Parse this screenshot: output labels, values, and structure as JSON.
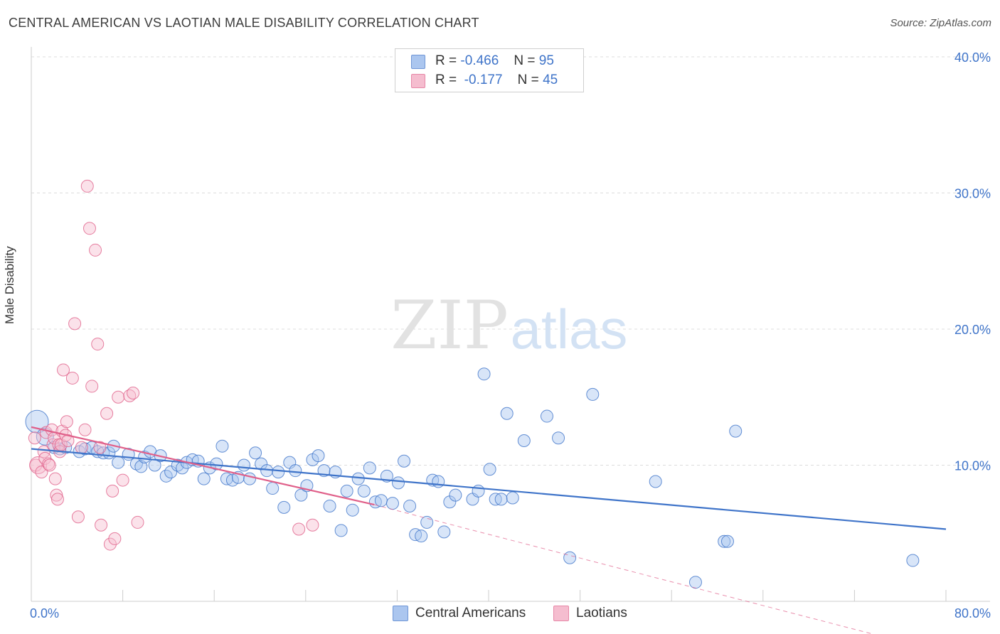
{
  "title": "CENTRAL AMERICAN VS LAOTIAN MALE DISABILITY CORRELATION CHART",
  "source": "Source: ZipAtlas.com",
  "watermark": {
    "zip": "ZIP",
    "atlas": "atlas"
  },
  "legend": {
    "series": [
      {
        "r_label": "R =",
        "r_value": "-0.466",
        "n_label": "N =",
        "n_value": "95",
        "color": "#8fb4ea",
        "edge": "#3f74c9"
      },
      {
        "r_label": "R =",
        "r_value": "-0.177",
        "n_label": "N =",
        "n_value": "45",
        "color": "#f2a7bf",
        "edge": "#e0608a"
      }
    ]
  },
  "bottom_legend": [
    {
      "label": "Central Americans",
      "color": "#8fb4ea",
      "edge": "#3f74c9"
    },
    {
      "label": "Laotians",
      "color": "#f2a7bf",
      "edge": "#e0608a"
    }
  ],
  "chart_data": {
    "type": "scatter",
    "title": "CENTRAL AMERICAN VS LAOTIAN MALE DISABILITY CORRELATION CHART",
    "xlabel": "",
    "ylabel": "Male Disability",
    "xlim": [
      0,
      80
    ],
    "ylim": [
      0,
      40
    ],
    "x_tick_labels": [
      "0.0%",
      "80.0%"
    ],
    "y_ticks": [
      10,
      20,
      30,
      40
    ],
    "y_tick_labels": [
      "10.0%",
      "20.0%",
      "30.0%",
      "40.0%"
    ],
    "grid": true,
    "series": [
      {
        "name": "Central Americans",
        "color": "#3f74c9",
        "points": [
          [
            0.5,
            13.2,
            3
          ],
          [
            1.2,
            12.1,
            2
          ],
          [
            2.0,
            11.3,
            1
          ],
          [
            2.5,
            11.2,
            1
          ],
          [
            3.0,
            11.3,
            1
          ],
          [
            4.2,
            11.0,
            1
          ],
          [
            4.7,
            11.2,
            1
          ],
          [
            5.3,
            11.3,
            1
          ],
          [
            5.8,
            11.0,
            1
          ],
          [
            6.3,
            10.9,
            1
          ],
          [
            6.8,
            10.9,
            1
          ],
          [
            7.2,
            11.4,
            1
          ],
          [
            7.6,
            10.2,
            1
          ],
          [
            8.5,
            10.8,
            1
          ],
          [
            9.2,
            10.1,
            1
          ],
          [
            9.6,
            9.9,
            1
          ],
          [
            9.9,
            10.6,
            1
          ],
          [
            10.4,
            11.0,
            1
          ],
          [
            10.8,
            10.0,
            1
          ],
          [
            11.3,
            10.7,
            1
          ],
          [
            11.8,
            9.2,
            1
          ],
          [
            12.2,
            9.5,
            1
          ],
          [
            12.8,
            10.0,
            1
          ],
          [
            13.2,
            9.8,
            1
          ],
          [
            13.6,
            10.2,
            1
          ],
          [
            14.1,
            10.4,
            1
          ],
          [
            14.6,
            10.3,
            1
          ],
          [
            15.1,
            9.0,
            1
          ],
          [
            15.6,
            9.8,
            1
          ],
          [
            16.2,
            10.1,
            1
          ],
          [
            16.7,
            11.4,
            1
          ],
          [
            17.1,
            9.0,
            1
          ],
          [
            17.6,
            8.9,
            1
          ],
          [
            18.1,
            9.1,
            1
          ],
          [
            18.6,
            10.0,
            1
          ],
          [
            19.1,
            9.0,
            1
          ],
          [
            19.6,
            10.9,
            1
          ],
          [
            20.1,
            10.1,
            1
          ],
          [
            20.6,
            9.6,
            1
          ],
          [
            21.1,
            8.3,
            1
          ],
          [
            21.6,
            9.5,
            1
          ],
          [
            22.1,
            6.9,
            1
          ],
          [
            22.6,
            10.2,
            1
          ],
          [
            23.1,
            9.6,
            1
          ],
          [
            23.6,
            7.8,
            1
          ],
          [
            24.1,
            8.5,
            1
          ],
          [
            24.6,
            10.4,
            1
          ],
          [
            25.1,
            10.7,
            1
          ],
          [
            25.6,
            9.6,
            1
          ],
          [
            26.1,
            7.0,
            1
          ],
          [
            26.6,
            9.5,
            1
          ],
          [
            27.1,
            5.2,
            1
          ],
          [
            27.6,
            8.1,
            1
          ],
          [
            28.1,
            6.7,
            1
          ],
          [
            28.6,
            9.0,
            1
          ],
          [
            29.1,
            8.1,
            1
          ],
          [
            29.6,
            9.8,
            1
          ],
          [
            30.1,
            7.3,
            1
          ],
          [
            30.6,
            7.4,
            1
          ],
          [
            31.1,
            9.2,
            1
          ],
          [
            31.6,
            7.2,
            1
          ],
          [
            32.1,
            8.7,
            1
          ],
          [
            32.6,
            10.3,
            1
          ],
          [
            33.1,
            7.0,
            1
          ],
          [
            33.6,
            4.9,
            1
          ],
          [
            34.1,
            4.8,
            1
          ],
          [
            34.6,
            5.8,
            1
          ],
          [
            35.1,
            8.9,
            1
          ],
          [
            35.6,
            8.8,
            1
          ],
          [
            36.1,
            5.1,
            1
          ],
          [
            36.6,
            7.3,
            1
          ],
          [
            37.1,
            7.8,
            1
          ],
          [
            38.6,
            7.5,
            1
          ],
          [
            39.1,
            8.1,
            1
          ],
          [
            39.6,
            16.7,
            1
          ],
          [
            40.1,
            9.7,
            1
          ],
          [
            40.6,
            7.5,
            1
          ],
          [
            41.1,
            7.5,
            1
          ],
          [
            41.6,
            13.8,
            1
          ],
          [
            42.1,
            7.6,
            1
          ],
          [
            43.1,
            11.8,
            1
          ],
          [
            45.1,
            13.6,
            1
          ],
          [
            46.1,
            12.0,
            1
          ],
          [
            47.1,
            3.2,
            1
          ],
          [
            49.1,
            15.2,
            1
          ],
          [
            54.6,
            8.8,
            1
          ],
          [
            58.1,
            1.4,
            1
          ],
          [
            60.6,
            4.4,
            1
          ],
          [
            60.9,
            4.4,
            1
          ],
          [
            61.6,
            12.5,
            1
          ],
          [
            77.1,
            3.0,
            1
          ]
        ],
        "trend": {
          "x": [
            0,
            80
          ],
          "y": [
            11.2,
            5.3
          ]
        }
      },
      {
        "name": "Laotians",
        "color": "#e0608a",
        "points": [
          [
            0.3,
            12.0,
            1
          ],
          [
            0.4,
            10.0,
            1
          ],
          [
            0.6,
            10.0,
            2
          ],
          [
            0.9,
            9.5,
            1
          ],
          [
            1.1,
            11.0,
            1
          ],
          [
            1.2,
            10.5,
            1
          ],
          [
            1.3,
            12.4,
            1
          ],
          [
            1.5,
            10.1,
            1
          ],
          [
            1.6,
            10.0,
            1
          ],
          [
            1.8,
            12.6,
            1
          ],
          [
            1.9,
            11.5,
            1
          ],
          [
            2.0,
            12.0,
            1
          ],
          [
            2.1,
            9.0,
            1
          ],
          [
            2.2,
            7.8,
            1
          ],
          [
            2.3,
            7.5,
            1
          ],
          [
            2.4,
            11.5,
            1
          ],
          [
            2.5,
            11.0,
            1
          ],
          [
            2.6,
            11.5,
            1
          ],
          [
            2.7,
            12.5,
            1
          ],
          [
            2.8,
            17.0,
            1
          ],
          [
            3.0,
            12.2,
            1
          ],
          [
            3.1,
            13.2,
            1
          ],
          [
            3.2,
            11.8,
            1
          ],
          [
            3.6,
            16.4,
            1
          ],
          [
            3.8,
            20.4,
            1
          ],
          [
            4.1,
            6.2,
            1
          ],
          [
            4.4,
            11.3,
            1
          ],
          [
            4.7,
            12.6,
            1
          ],
          [
            4.9,
            30.5,
            1
          ],
          [
            5.1,
            27.4,
            1
          ],
          [
            5.3,
            15.8,
            1
          ],
          [
            5.6,
            25.8,
            1
          ],
          [
            5.8,
            18.9,
            1
          ],
          [
            6.0,
            11.3,
            1
          ],
          [
            6.1,
            5.6,
            1
          ],
          [
            6.6,
            13.8,
            1
          ],
          [
            6.9,
            4.2,
            1
          ],
          [
            7.1,
            8.1,
            1
          ],
          [
            7.3,
            4.6,
            1
          ],
          [
            7.6,
            15.0,
            1
          ],
          [
            8.0,
            8.9,
            1
          ],
          [
            8.6,
            15.1,
            1
          ],
          [
            8.9,
            15.3,
            1
          ],
          [
            9.3,
            5.8,
            1
          ],
          [
            23.4,
            5.3,
            1
          ],
          [
            24.6,
            5.6,
            1
          ]
        ],
        "trend": {
          "x": [
            0,
            30
          ],
          "y": [
            12.8,
            7.1
          ]
        },
        "trend_dashed": {
          "x": [
            30,
            80
          ],
          "y": [
            7.1,
            -3.8
          ]
        }
      }
    ]
  }
}
